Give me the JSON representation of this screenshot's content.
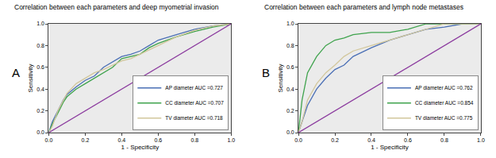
{
  "chart_data": [
    {
      "type": "line",
      "title": "Correlation between each parameters and deep myometrial invasion",
      "annotations": [
        "A"
      ],
      "x_label": "1 - Specificity",
      "y_label": "Sensitivity",
      "xlim": [
        0,
        1
      ],
      "ylim": [
        0,
        1
      ],
      "xticks": [
        {
          "value": 0,
          "label": "0.0"
        },
        {
          "value": 0.2,
          "label": "0.2"
        },
        {
          "value": 0.4,
          "label": "0.4"
        },
        {
          "value": 0.6,
          "label": "0.6"
        },
        {
          "value": 0.8,
          "label": "0.8"
        },
        {
          "value": 1,
          "label": "1.0"
        }
      ],
      "yticks": [
        {
          "value": 0,
          "label": "0.0"
        },
        {
          "value": 0.2,
          "label": "0.2"
        },
        {
          "value": 0.4,
          "label": "0.4"
        },
        {
          "value": 0.6,
          "label": "0.6"
        },
        {
          "value": 0.8,
          "label": "0.8"
        },
        {
          "value": 1,
          "label": "1.0"
        }
      ],
      "grid": false,
      "legend": "lower right",
      "series": [
        {
          "name": "AP diameter AUC =0.727",
          "color": "#4a6fb5",
          "x": [
            0,
            0.02,
            0.05,
            0.08,
            0.1,
            0.15,
            0.2,
            0.25,
            0.3,
            0.35,
            0.4,
            0.45,
            0.5,
            0.55,
            0.6,
            0.7,
            0.8,
            0.9,
            1
          ],
          "values": [
            0,
            0.1,
            0.2,
            0.3,
            0.35,
            0.42,
            0.48,
            0.52,
            0.6,
            0.65,
            0.7,
            0.72,
            0.75,
            0.8,
            0.85,
            0.9,
            0.95,
            0.98,
            1
          ]
        },
        {
          "name": "CC diameter AUC =0.707",
          "color": "#3fa34d",
          "x": [
            0,
            0.02,
            0.05,
            0.08,
            0.1,
            0.15,
            0.2,
            0.25,
            0.3,
            0.35,
            0.4,
            0.45,
            0.5,
            0.55,
            0.6,
            0.7,
            0.8,
            0.9,
            1
          ],
          "values": [
            0,
            0.08,
            0.18,
            0.28,
            0.33,
            0.4,
            0.45,
            0.5,
            0.55,
            0.6,
            0.68,
            0.7,
            0.72,
            0.78,
            0.82,
            0.88,
            0.93,
            0.97,
            1
          ]
        },
        {
          "name": "TV diameter AUC =0.718",
          "color": "#d2c79c",
          "x": [
            0,
            0.02,
            0.05,
            0.08,
            0.1,
            0.15,
            0.2,
            0.25,
            0.3,
            0.35,
            0.4,
            0.45,
            0.5,
            0.55,
            0.6,
            0.7,
            0.8,
            0.9,
            1
          ],
          "values": [
            0,
            0.06,
            0.2,
            0.3,
            0.36,
            0.45,
            0.5,
            0.55,
            0.58,
            0.62,
            0.66,
            0.68,
            0.72,
            0.76,
            0.8,
            0.88,
            0.94,
            0.98,
            1
          ]
        },
        {
          "color": "#8b3a9e",
          "x": [
            0,
            1
          ],
          "values": [
            0,
            1
          ]
        }
      ]
    },
    {
      "type": "line",
      "title": "Correlation between each parameters and lymph node metastases",
      "annotations": [
        "B"
      ],
      "x_label": "1 - Specificity",
      "y_label": "Sensitivity",
      "xlim": [
        0,
        1
      ],
      "ylim": [
        0,
        1
      ],
      "xticks": [
        {
          "value": 0,
          "label": "0.0"
        },
        {
          "value": 0.2,
          "label": "0.2"
        },
        {
          "value": 0.4,
          "label": "0.4"
        },
        {
          "value": 0.6,
          "label": "0.6"
        },
        {
          "value": 0.8,
          "label": "0.8"
        },
        {
          "value": 1,
          "label": "1.0"
        }
      ],
      "yticks": [
        {
          "value": 0,
          "label": "0.0"
        },
        {
          "value": 0.2,
          "label": "0.2"
        },
        {
          "value": 0.4,
          "label": "0.4"
        },
        {
          "value": 0.6,
          "label": "0.6"
        },
        {
          "value": 0.8,
          "label": "0.8"
        },
        {
          "value": 1,
          "label": "1.0"
        }
      ],
      "grid": false,
      "legend": "lower right",
      "series": [
        {
          "name": "AP diameter AUC =0.762",
          "color": "#4a6fb5",
          "x": [
            0,
            0.02,
            0.05,
            0.1,
            0.15,
            0.2,
            0.25,
            0.3,
            0.4,
            0.5,
            0.6,
            0.7,
            0.8,
            0.9,
            1
          ],
          "values": [
            0,
            0.1,
            0.25,
            0.4,
            0.5,
            0.58,
            0.62,
            0.7,
            0.78,
            0.85,
            0.9,
            0.95,
            0.97,
            1,
            1
          ]
        },
        {
          "name": "CC diameter AUC =0.854",
          "color": "#3fa34d",
          "x": [
            0,
            0.02,
            0.05,
            0.1,
            0.15,
            0.2,
            0.25,
            0.3,
            0.4,
            0.5,
            0.6,
            0.7,
            0.8,
            0.9,
            1
          ],
          "values": [
            0,
            0.3,
            0.55,
            0.7,
            0.8,
            0.85,
            0.87,
            0.9,
            0.92,
            0.92,
            0.95,
            1,
            1,
            1,
            1
          ]
        },
        {
          "name": "TV diameter AUC =0.775",
          "color": "#d2c79c",
          "x": [
            0,
            0.02,
            0.05,
            0.1,
            0.15,
            0.2,
            0.25,
            0.3,
            0.4,
            0.5,
            0.6,
            0.7,
            0.8,
            0.9,
            1
          ],
          "values": [
            0,
            0.1,
            0.3,
            0.45,
            0.55,
            0.62,
            0.7,
            0.75,
            0.8,
            0.85,
            0.9,
            0.95,
            1,
            1,
            1
          ]
        },
        {
          "color": "#8b3a9e",
          "x": [
            0,
            1
          ],
          "values": [
            0,
            1
          ]
        }
      ]
    }
  ]
}
